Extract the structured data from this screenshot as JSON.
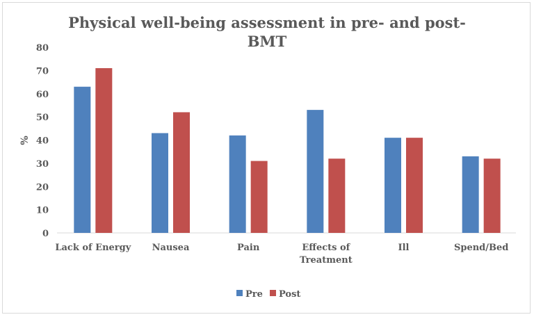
{
  "chart_data": {
    "type": "bar",
    "title": "Physical well-being assessment in pre- and post-BMT",
    "title_lines": [
      "Physical well-being assessment in pre- and post-",
      "BMT"
    ],
    "xlabel": "",
    "ylabel": "%",
    "ylim": [
      0,
      80
    ],
    "yticks": [
      0,
      10,
      20,
      30,
      40,
      50,
      60,
      70,
      80
    ],
    "grid": false,
    "legend": "bottom",
    "categories": [
      "Lack of Energy",
      "Nausea",
      "Pain",
      "Effects of Treatment",
      "Ill",
      "Spend/Bed"
    ],
    "category_lines": [
      [
        "Lack of Energy"
      ],
      [
        "Nausea"
      ],
      [
        "Pain"
      ],
      [
        "Effects of",
        "Treatment"
      ],
      [
        "Ill"
      ],
      [
        "Spend/Bed"
      ]
    ],
    "series": [
      {
        "name": "Pre",
        "color": "#4f81bd",
        "values": [
          63,
          43,
          42,
          53,
          41,
          33
        ]
      },
      {
        "name": "Post",
        "color": "#c0504d",
        "values": [
          71,
          52,
          31,
          32,
          41,
          32
        ]
      }
    ]
  }
}
